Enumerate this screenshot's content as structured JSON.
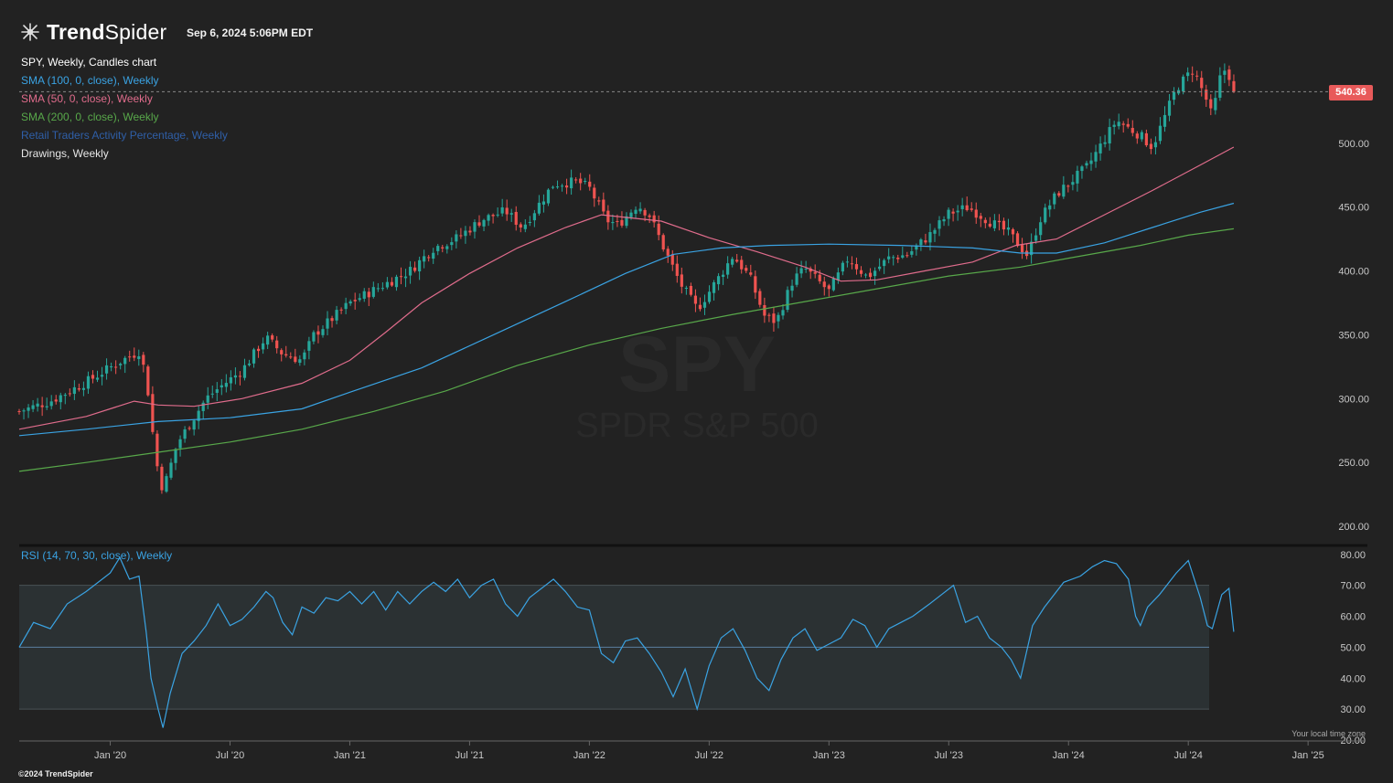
{
  "header": {
    "brand_bold": "Trend",
    "brand_light": "Spider",
    "timestamp": "Sep 6, 2024 5:06PM EDT"
  },
  "legend": [
    {
      "label": "SPY, Weekly, Candles chart",
      "color": "#ffffff"
    },
    {
      "label": "SMA (100, 0, close), Weekly",
      "color": "#3aa3e3"
    },
    {
      "label": "SMA (50, 0, close), Weekly",
      "color": "#e06c8c"
    },
    {
      "label": "SMA (200, 0, close), Weekly",
      "color": "#58a84a"
    },
    {
      "label": "Retail Traders Activity Percentage, Weekly",
      "color": "#2f5fa8"
    },
    {
      "label": "Drawings, Weekly",
      "color": "#e6e6e6"
    }
  ],
  "rsi_legend": "RSI (14, 70, 30, close), Weekly",
  "watermark": {
    "symbol": "SPY",
    "name": "SPDR S&P 500"
  },
  "price_badge": "540.36",
  "footer": {
    "copyright": "©2024 TrendSpider",
    "timezone": "Your local time zone"
  },
  "colors": {
    "up": "#26a69a",
    "down": "#ef5350",
    "background": "#222222",
    "rsi_line": "#3aa3e3"
  },
  "chart_data": [
    {
      "type": "candlestick",
      "symbol": "SPY",
      "interval": "weekly",
      "last_price": 540.36,
      "ylim": [
        190,
        580
      ],
      "y_ticks": [
        "200.00",
        "250.00",
        "300.00",
        "350.00",
        "400.00",
        "450.00",
        "500.00"
      ],
      "x_ticks": [
        "Jan '20",
        "Jul '20",
        "Jan '21",
        "Jul '21",
        "Jan '22",
        "Jul '22",
        "Jan '23",
        "Jul '23",
        "Jan '24",
        "Jul '24",
        "Jan '25"
      ],
      "x_tick_values": [
        2020.0,
        2020.5,
        2021.0,
        2021.5,
        2022.0,
        2022.5,
        2023.0,
        2023.5,
        2024.0,
        2024.5,
        2025.0
      ],
      "xlim": [
        2019.62,
        2025.24
      ],
      "close_anchors": [
        [
          2019.62,
          290
        ],
        [
          2019.75,
          298
        ],
        [
          2019.9,
          313
        ],
        [
          2020.05,
          330
        ],
        [
          2020.12,
          337
        ],
        [
          2020.15,
          318
        ],
        [
          2020.19,
          252
        ],
        [
          2020.22,
          228
        ],
        [
          2020.28,
          265
        ],
        [
          2020.4,
          300
        ],
        [
          2020.45,
          308
        ],
        [
          2020.55,
          322
        ],
        [
          2020.65,
          348
        ],
        [
          2020.72,
          335
        ],
        [
          2020.8,
          330
        ],
        [
          2020.85,
          350
        ],
        [
          2021.0,
          375
        ],
        [
          2021.15,
          390
        ],
        [
          2021.25,
          400
        ],
        [
          2021.35,
          418
        ],
        [
          2021.45,
          426
        ],
        [
          2021.55,
          440
        ],
        [
          2021.65,
          447
        ],
        [
          2021.72,
          434
        ],
        [
          2021.85,
          468
        ],
        [
          2021.95,
          470
        ],
        [
          2022.0,
          465
        ],
        [
          2022.07,
          440
        ],
        [
          2022.12,
          436
        ],
        [
          2022.2,
          452
        ],
        [
          2022.25,
          444
        ],
        [
          2022.32,
          414
        ],
        [
          2022.38,
          390
        ],
        [
          2022.45,
          370
        ],
        [
          2022.53,
          392
        ],
        [
          2022.6,
          412
        ],
        [
          2022.67,
          395
        ],
        [
          2022.73,
          365
        ],
        [
          2022.78,
          360
        ],
        [
          2022.85,
          393
        ],
        [
          2022.9,
          402
        ],
        [
          2023.0,
          384
        ],
        [
          2023.08,
          410
        ],
        [
          2023.16,
          395
        ],
        [
          2023.25,
          410
        ],
        [
          2023.33,
          413
        ],
        [
          2023.42,
          428
        ],
        [
          2023.5,
          445
        ],
        [
          2023.58,
          450
        ],
        [
          2023.66,
          440
        ],
        [
          2023.75,
          430
        ],
        [
          2023.83,
          412
        ],
        [
          2023.88,
          440
        ],
        [
          2023.95,
          460
        ],
        [
          2024.08,
          482
        ],
        [
          2024.2,
          518
        ],
        [
          2024.3,
          506
        ],
        [
          2024.35,
          497
        ],
        [
          2024.45,
          543
        ],
        [
          2024.52,
          558
        ],
        [
          2024.58,
          532
        ],
        [
          2024.6,
          520
        ],
        [
          2024.63,
          550
        ],
        [
          2024.66,
          560
        ],
        [
          2024.69,
          540.36
        ]
      ],
      "series": [
        {
          "name": "SMA (50, 0, close), Weekly",
          "points": [
            [
              2019.62,
              276
            ],
            [
              2019.9,
              286
            ],
            [
              2020.1,
              298
            ],
            [
              2020.2,
              295
            ],
            [
              2020.35,
              294
            ],
            [
              2020.55,
              300
            ],
            [
              2020.8,
              312
            ],
            [
              2021.0,
              330
            ],
            [
              2021.15,
              352
            ],
            [
              2021.3,
              375
            ],
            [
              2021.5,
              398
            ],
            [
              2021.7,
              418
            ],
            [
              2021.9,
              434
            ],
            [
              2022.05,
              444
            ],
            [
              2022.3,
              439
            ],
            [
              2022.5,
              426
            ],
            [
              2022.7,
              415
            ],
            [
              2022.9,
              403
            ],
            [
              2023.05,
              392
            ],
            [
              2023.2,
              393
            ],
            [
              2023.4,
              400
            ],
            [
              2023.6,
              407
            ],
            [
              2023.78,
              420
            ],
            [
              2023.95,
              425
            ],
            [
              2024.15,
              444
            ],
            [
              2024.35,
              463
            ],
            [
              2024.55,
              483
            ],
            [
              2024.69,
              497
            ]
          ]
        },
        {
          "name": "SMA (100, 0, close), Weekly",
          "points": [
            [
              2019.62,
              271
            ],
            [
              2019.9,
              276
            ],
            [
              2020.2,
              282
            ],
            [
              2020.5,
              285
            ],
            [
              2020.8,
              292
            ],
            [
              2021.0,
              305
            ],
            [
              2021.3,
              324
            ],
            [
              2021.6,
              350
            ],
            [
              2021.9,
              376
            ],
            [
              2022.15,
              398
            ],
            [
              2022.35,
              413
            ],
            [
              2022.55,
              418
            ],
            [
              2022.75,
              420
            ],
            [
              2023.0,
              421
            ],
            [
              2023.3,
              420
            ],
            [
              2023.6,
              418
            ],
            [
              2023.8,
              414
            ],
            [
              2023.95,
              414
            ],
            [
              2024.15,
              422
            ],
            [
              2024.35,
              434
            ],
            [
              2024.55,
              446
            ],
            [
              2024.69,
              453
            ]
          ]
        },
        {
          "name": "SMA (200, 0, close), Weekly",
          "points": [
            [
              2019.62,
              243
            ],
            [
              2019.9,
              250
            ],
            [
              2020.2,
              258
            ],
            [
              2020.5,
              266
            ],
            [
              2020.8,
              276
            ],
            [
              2021.1,
              290
            ],
            [
              2021.4,
              306
            ],
            [
              2021.7,
              326
            ],
            [
              2022.0,
              342
            ],
            [
              2022.3,
              355
            ],
            [
              2022.6,
              366
            ],
            [
              2022.9,
              376
            ],
            [
              2023.2,
              386
            ],
            [
              2023.5,
              396
            ],
            [
              2023.8,
              403
            ],
            [
              2024.0,
              410
            ],
            [
              2024.3,
              420
            ],
            [
              2024.5,
              428
            ],
            [
              2024.69,
              433
            ]
          ]
        }
      ]
    },
    {
      "type": "line",
      "name": "RSI (14, 70, 30, close), Weekly",
      "ylim": [
        20,
        82
      ],
      "y_ticks": [
        "20.00",
        "30.00",
        "40.00",
        "50.00",
        "60.00",
        "70.00",
        "80.00"
      ],
      "bands": {
        "upper": 70,
        "lower": 30,
        "mid": 50
      },
      "points": [
        [
          2019.62,
          50
        ],
        [
          2019.68,
          58
        ],
        [
          2019.75,
          56
        ],
        [
          2019.82,
          64
        ],
        [
          2019.9,
          68
        ],
        [
          2020.0,
          74
        ],
        [
          2020.04,
          79
        ],
        [
          2020.08,
          72
        ],
        [
          2020.12,
          73
        ],
        [
          2020.15,
          55
        ],
        [
          2020.17,
          40
        ],
        [
          2020.2,
          30
        ],
        [
          2020.22,
          24
        ],
        [
          2020.25,
          35
        ],
        [
          2020.3,
          48
        ],
        [
          2020.35,
          52
        ],
        [
          2020.4,
          57
        ],
        [
          2020.45,
          64
        ],
        [
          2020.5,
          57
        ],
        [
          2020.55,
          59
        ],
        [
          2020.6,
          63
        ],
        [
          2020.65,
          68
        ],
        [
          2020.68,
          66
        ],
        [
          2020.72,
          58
        ],
        [
          2020.76,
          54
        ],
        [
          2020.8,
          63
        ],
        [
          2020.85,
          61
        ],
        [
          2020.9,
          66
        ],
        [
          2020.95,
          65
        ],
        [
          2021.0,
          68
        ],
        [
          2021.05,
          64
        ],
        [
          2021.1,
          68
        ],
        [
          2021.15,
          62
        ],
        [
          2021.2,
          68
        ],
        [
          2021.25,
          64
        ],
        [
          2021.3,
          68
        ],
        [
          2021.35,
          71
        ],
        [
          2021.4,
          68
        ],
        [
          2021.45,
          72
        ],
        [
          2021.5,
          66
        ],
        [
          2021.55,
          70
        ],
        [
          2021.6,
          72
        ],
        [
          2021.65,
          64
        ],
        [
          2021.7,
          60
        ],
        [
          2021.75,
          66
        ],
        [
          2021.85,
          72
        ],
        [
          2021.9,
          68
        ],
        [
          2021.95,
          63
        ],
        [
          2022.0,
          62
        ],
        [
          2022.05,
          48
        ],
        [
          2022.1,
          45
        ],
        [
          2022.15,
          52
        ],
        [
          2022.2,
          53
        ],
        [
          2022.25,
          48
        ],
        [
          2022.3,
          42
        ],
        [
          2022.35,
          34
        ],
        [
          2022.4,
          43
        ],
        [
          2022.45,
          30
        ],
        [
          2022.5,
          44
        ],
        [
          2022.55,
          53
        ],
        [
          2022.6,
          56
        ],
        [
          2022.65,
          49
        ],
        [
          2022.7,
          40
        ],
        [
          2022.75,
          36
        ],
        [
          2022.8,
          46
        ],
        [
          2022.85,
          53
        ],
        [
          2022.9,
          56
        ],
        [
          2022.95,
          49
        ],
        [
          2023.0,
          51
        ],
        [
          2023.05,
          53
        ],
        [
          2023.1,
          59
        ],
        [
          2023.15,
          57
        ],
        [
          2023.2,
          50
        ],
        [
          2023.25,
          56
        ],
        [
          2023.3,
          58
        ],
        [
          2023.35,
          60
        ],
        [
          2023.42,
          64
        ],
        [
          2023.47,
          67
        ],
        [
          2023.52,
          70
        ],
        [
          2023.57,
          58
        ],
        [
          2023.62,
          60
        ],
        [
          2023.67,
          53
        ],
        [
          2023.72,
          50
        ],
        [
          2023.76,
          46
        ],
        [
          2023.8,
          40
        ],
        [
          2023.85,
          57
        ],
        [
          2023.9,
          63
        ],
        [
          2023.98,
          71
        ],
        [
          2024.05,
          73
        ],
        [
          2024.1,
          76
        ],
        [
          2024.15,
          78
        ],
        [
          2024.2,
          77
        ],
        [
          2024.25,
          72
        ],
        [
          2024.28,
          60
        ],
        [
          2024.3,
          57
        ],
        [
          2024.33,
          63
        ],
        [
          2024.38,
          67
        ],
        [
          2024.45,
          74
        ],
        [
          2024.5,
          78
        ],
        [
          2024.55,
          66
        ],
        [
          2024.58,
          57
        ],
        [
          2024.6,
          56
        ],
        [
          2024.64,
          67
        ],
        [
          2024.67,
          69
        ],
        [
          2024.69,
          55
        ]
      ]
    }
  ]
}
